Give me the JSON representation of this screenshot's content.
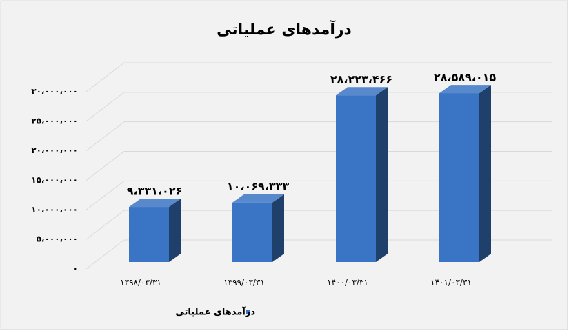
{
  "chart_data": {
    "type": "bar3d",
    "title": "درآمدهای عملیاتی",
    "categories": [
      "۱۳۹۸/۰۳/۳۱",
      "۱۳۹۹/۰۳/۳۱",
      "۱۴۰۰/۰۳/۳۱",
      "۱۴۰۱/۰۳/۳۱"
    ],
    "series": [
      {
        "name": "درآمدهای عملیاتی",
        "color": "#3a74c4",
        "values": [
          9331026,
          10069333,
          28223466,
          28589015
        ],
        "value_labels": [
          "۹،۳۳۱،۰۲۶",
          "۱۰،۰۶۹،۳۳۳",
          "۲۸،۲۲۳،۴۶۶",
          "۲۸،۵۸۹،۰۱۵"
        ]
      }
    ],
    "ylim": [
      0,
      30000000
    ],
    "yticks": [
      {
        "value": 0,
        "label": "۰"
      },
      {
        "value": 5000000,
        "label": "۵،۰۰۰،۰۰۰"
      },
      {
        "value": 10000000,
        "label": "۱۰،۰۰۰،۰۰۰"
      },
      {
        "value": 15000000,
        "label": "۱۵،۰۰۰،۰۰۰"
      },
      {
        "value": 20000000,
        "label": "۲۰،۰۰۰،۰۰۰"
      },
      {
        "value": 25000000,
        "label": "۲۵،۰۰۰،۰۰۰"
      },
      {
        "value": 30000000,
        "label": "۳۰،۰۰۰،۰۰۰"
      }
    ],
    "grid": true,
    "legend": "bottom"
  }
}
